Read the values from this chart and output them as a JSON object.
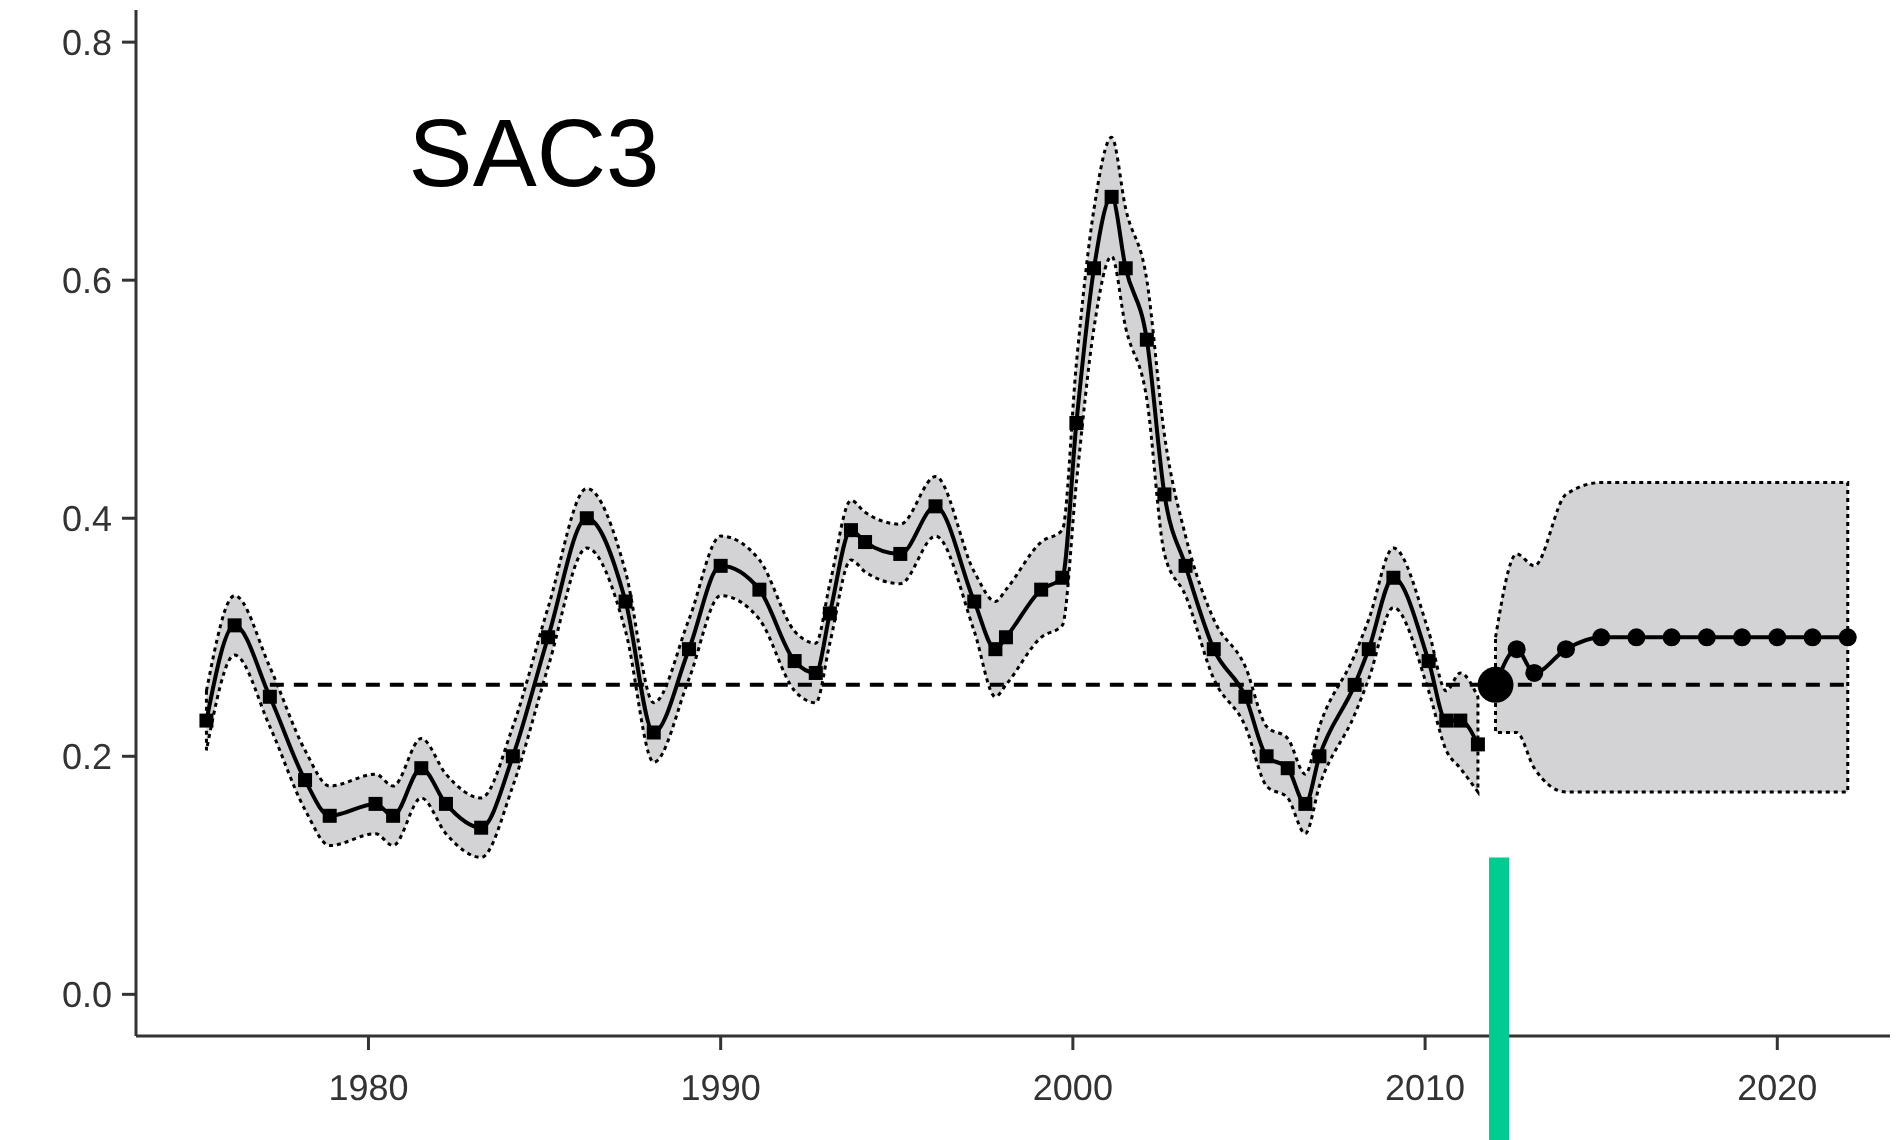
{
  "chart_data": {
    "type": "line",
    "title": "SAC3",
    "xlim": [
      1973.4,
      2023.2
    ],
    "ylim": [
      -0.035,
      0.827
    ],
    "xticks": [
      1980,
      1990,
      2000,
      2010,
      2020
    ],
    "yticks": [
      {
        "value": 0,
        "label": "0.0"
      },
      {
        "value": 0.2,
        "label": "0.2"
      },
      {
        "value": 0.4,
        "label": "0.4"
      },
      {
        "value": 0.6,
        "label": "0.6"
      },
      {
        "value": 0.8,
        "label": "0.8"
      }
    ],
    "series": [
      {
        "color": "#000000",
        "marker": "square",
        "line_style": "solid",
        "x": [
          1975.4,
          1976.2,
          1977.2,
          1978.2,
          1978.9,
          1980.2,
          1980.7,
          1981.5,
          1982.2,
          1983.2,
          1984.1,
          1985.1,
          1986.2,
          1987.3,
          1988.1,
          1989.1,
          1990.0,
          1991.1,
          1992.1,
          1992.7,
          1993.1,
          1993.7,
          1994.1,
          1995.1,
          1996.1,
          1997.2,
          1997.8,
          1998.1,
          1999.1,
          1999.7,
          2000.1,
          2000.6,
          2001.1,
          2001.5,
          2002.1,
          2002.6,
          2003.2,
          2004.0,
          2004.9,
          2005.5,
          2006.1,
          2006.6,
          2007.0,
          2008.0,
          2008.4,
          2009.1,
          2010.1,
          2010.6,
          2011.0,
          2011.5
        ],
        "values": [
          0.23,
          0.31,
          0.25,
          0.18,
          0.15,
          0.16,
          0.15,
          0.19,
          0.16,
          0.14,
          0.2,
          0.3,
          0.4,
          0.33,
          0.22,
          0.29,
          0.36,
          0.34,
          0.28,
          0.27,
          0.32,
          0.39,
          0.38,
          0.37,
          0.41,
          0.33,
          0.29,
          0.3,
          0.34,
          0.35,
          0.48,
          0.61,
          0.67,
          0.61,
          0.55,
          0.42,
          0.36,
          0.29,
          0.25,
          0.2,
          0.19,
          0.16,
          0.2,
          0.26,
          0.29,
          0.35,
          0.28,
          0.23,
          0.23,
          0.21
        ],
        "lower": [
          0.205,
          0.285,
          0.225,
          0.155,
          0.125,
          0.135,
          0.125,
          0.165,
          0.135,
          0.115,
          0.175,
          0.275,
          0.375,
          0.305,
          0.195,
          0.265,
          0.335,
          0.315,
          0.255,
          0.245,
          0.295,
          0.365,
          0.355,
          0.345,
          0.385,
          0.305,
          0.25,
          0.26,
          0.3,
          0.31,
          0.43,
          0.56,
          0.62,
          0.56,
          0.5,
          0.37,
          0.335,
          0.265,
          0.225,
          0.175,
          0.165,
          0.135,
          0.175,
          0.235,
          0.265,
          0.325,
          0.255,
          0.205,
          0.19,
          0.17
        ],
        "upper": [
          0.255,
          0.335,
          0.275,
          0.205,
          0.175,
          0.185,
          0.175,
          0.215,
          0.185,
          0.165,
          0.225,
          0.325,
          0.425,
          0.355,
          0.245,
          0.315,
          0.385,
          0.365,
          0.305,
          0.295,
          0.345,
          0.415,
          0.405,
          0.395,
          0.435,
          0.355,
          0.33,
          0.34,
          0.38,
          0.39,
          0.53,
          0.66,
          0.72,
          0.66,
          0.6,
          0.47,
          0.385,
          0.315,
          0.275,
          0.225,
          0.215,
          0.185,
          0.225,
          0.285,
          0.315,
          0.375,
          0.305,
          0.255,
          0.27,
          0.25
        ]
      },
      {
        "color": "#000000",
        "marker": "circle",
        "line_style": "solid",
        "x": [
          2012.0,
          2012.6,
          2013.1,
          2014.0,
          2015,
          2016,
          2017,
          2018,
          2019,
          2020,
          2021,
          2022
        ],
        "values": [
          0.26,
          0.29,
          0.27,
          0.29,
          0.3,
          0.3,
          0.3,
          0.3,
          0.3,
          0.3,
          0.3,
          0.3
        ],
        "lower": [
          0.22,
          0.22,
          0.19,
          0.17,
          0.17,
          0.17,
          0.17,
          0.17,
          0.17,
          0.17,
          0.17,
          0.17
        ],
        "upper": [
          0.3,
          0.37,
          0.36,
          0.42,
          0.43,
          0.43,
          0.43,
          0.43,
          0.43,
          0.43,
          0.43,
          0.43
        ]
      },
      {
        "color": "#000000",
        "marker": "none",
        "line_style": "dashed",
        "x": [
          1977.2,
          2022
        ],
        "values": [
          0.26,
          0.26
        ]
      },
      {
        "type": "scatter",
        "color": "#000000",
        "x": [
          2012.0
        ],
        "values": [
          0.26
        ]
      }
    ],
    "ref_lines": [
      {
        "axis": "x",
        "value": 2012.1,
        "color": "#00cc8f"
      }
    ]
  }
}
